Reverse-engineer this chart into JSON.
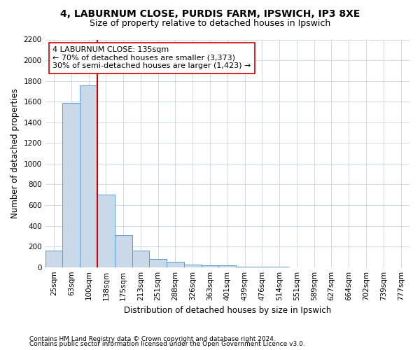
{
  "title_line1": "4, LABURNUM CLOSE, PURDIS FARM, IPSWICH, IP3 8XE",
  "title_line2": "Size of property relative to detached houses in Ipswich",
  "xlabel": "Distribution of detached houses by size in Ipswich",
  "ylabel": "Number of detached properties",
  "categories": [
    "25sqm",
    "63sqm",
    "100sqm",
    "138sqm",
    "175sqm",
    "213sqm",
    "251sqm",
    "288sqm",
    "326sqm",
    "363sqm",
    "401sqm",
    "439sqm",
    "476sqm",
    "514sqm",
    "551sqm",
    "589sqm",
    "627sqm",
    "664sqm",
    "702sqm",
    "739sqm",
    "777sqm"
  ],
  "values": [
    160,
    1590,
    1760,
    700,
    310,
    160,
    80,
    50,
    25,
    20,
    15,
    5,
    5,
    2,
    1,
    1,
    0,
    0,
    0,
    0,
    0
  ],
  "bar_color": "#c9d9e8",
  "bar_edge_color": "#5b9bd5",
  "property_line_idx": 3,
  "property_line_color": "#cc0000",
  "annotation_text": "4 LABURNUM CLOSE: 135sqm\n← 70% of detached houses are smaller (3,373)\n30% of semi-detached houses are larger (1,423) →",
  "annotation_box_color": "white",
  "annotation_box_edge_color": "#cc0000",
  "ylim": [
    0,
    2200
  ],
  "yticks": [
    0,
    200,
    400,
    600,
    800,
    1000,
    1200,
    1400,
    1600,
    1800,
    2000,
    2200
  ],
  "grid_color": "#c8d4e3",
  "footer_line1": "Contains HM Land Registry data © Crown copyright and database right 2024.",
  "footer_line2": "Contains public sector information licensed under the Open Government Licence v3.0.",
  "title_fontsize": 10,
  "subtitle_fontsize": 9,
  "axis_label_fontsize": 8.5,
  "tick_fontsize": 7.5,
  "annotation_fontsize": 8,
  "footer_fontsize": 6.5
}
